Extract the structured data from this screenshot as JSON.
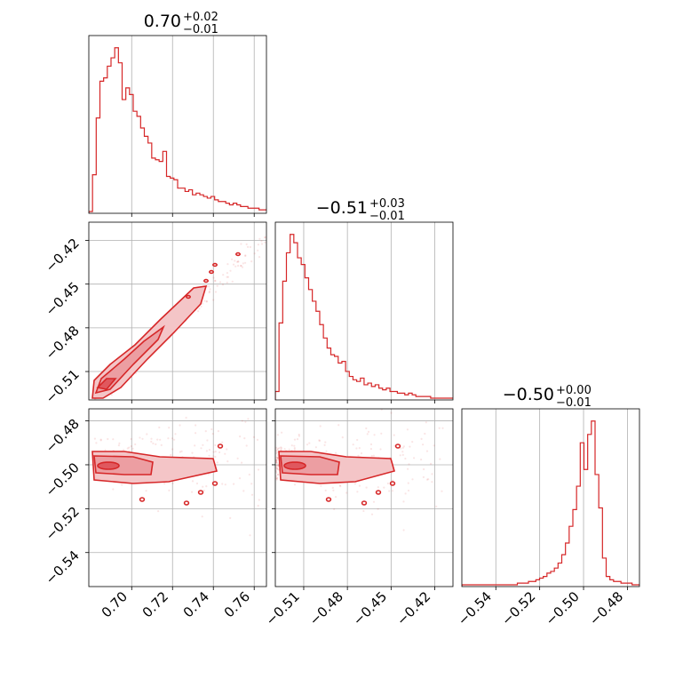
{
  "chart_data": {
    "type": "corner",
    "color": "#d62728",
    "parameters": [
      {
        "title_value": "0.70",
        "title_plus": "+0.02",
        "title_minus": "−0.01",
        "range": [
          0.679,
          0.766
        ],
        "ticks": [
          0.7,
          0.72,
          0.74,
          0.76
        ],
        "tick_labels": [
          "0.70",
          "0.72",
          "0.74",
          "0.76"
        ],
        "hist": {
          "start": 0.679,
          "bin_width": 0.0018125,
          "heights": [
            0.0,
            0.22,
            0.56,
            0.78,
            0.8,
            0.87,
            0.92,
            0.98,
            0.89,
            0.67,
            0.74,
            0.7,
            0.6,
            0.57,
            0.5,
            0.45,
            0.41,
            0.32,
            0.31,
            0.3,
            0.36,
            0.21,
            0.2,
            0.19,
            0.14,
            0.14,
            0.12,
            0.13,
            0.1,
            0.11,
            0.1,
            0.09,
            0.08,
            0.09,
            0.07,
            0.06,
            0.06,
            0.05,
            0.04,
            0.05,
            0.04,
            0.03,
            0.03,
            0.02,
            0.02,
            0.02,
            0.01,
            0.01
          ]
        }
      },
      {
        "title_value": "−0.51",
        "title_plus": "+0.03",
        "title_minus": "−0.01",
        "range": [
          -0.5295,
          -0.4075
        ],
        "ticks": [
          -0.51,
          -0.48,
          -0.45,
          -0.42
        ],
        "tick_labels": [
          "−0.51",
          "−0.48",
          "−0.45",
          "−0.42"
        ],
        "hist": {
          "start": -0.5295,
          "bin_width": 0.00254,
          "heights": [
            0.04,
            0.45,
            0.7,
            0.87,
            0.98,
            0.93,
            0.84,
            0.8,
            0.72,
            0.65,
            0.58,
            0.52,
            0.44,
            0.36,
            0.3,
            0.26,
            0.25,
            0.21,
            0.22,
            0.16,
            0.13,
            0.11,
            0.1,
            0.12,
            0.08,
            0.09,
            0.07,
            0.08,
            0.06,
            0.05,
            0.06,
            0.04,
            0.04,
            0.03,
            0.03,
            0.02,
            0.03,
            0.02,
            0.01,
            0.01,
            0.01,
            0.01,
            0.0,
            0.0,
            0.0,
            0.0,
            0.0,
            0.0
          ]
        }
      },
      {
        "title_value": "−0.50",
        "title_plus": "+0.00",
        "title_minus": "−0.01",
        "range": [
          -0.5555,
          -0.4745
        ],
        "ticks": [
          -0.54,
          -0.52,
          -0.5,
          -0.48
        ],
        "tick_labels": [
          "−0.54",
          "−0.52",
          "−0.50",
          "−0.48"
        ],
        "hist": {
          "start": -0.5555,
          "bin_width": 0.0016875,
          "heights": [
            0.0,
            0.0,
            0.0,
            0.0,
            0.0,
            0.0,
            0.0,
            0.0,
            0.0,
            0.0,
            0.0,
            0.0,
            0.0,
            0.0,
            0.0,
            0.01,
            0.01,
            0.01,
            0.02,
            0.02,
            0.03,
            0.04,
            0.05,
            0.07,
            0.08,
            0.1,
            0.13,
            0.18,
            0.25,
            0.35,
            0.45,
            0.59,
            0.85,
            0.69,
            0.9,
            0.98,
            0.66,
            0.46,
            0.16,
            0.05,
            0.03,
            0.02,
            0.02,
            0.01,
            0.01,
            0.01,
            0.0,
            0.0
          ]
        }
      }
    ],
    "grid": true
  }
}
